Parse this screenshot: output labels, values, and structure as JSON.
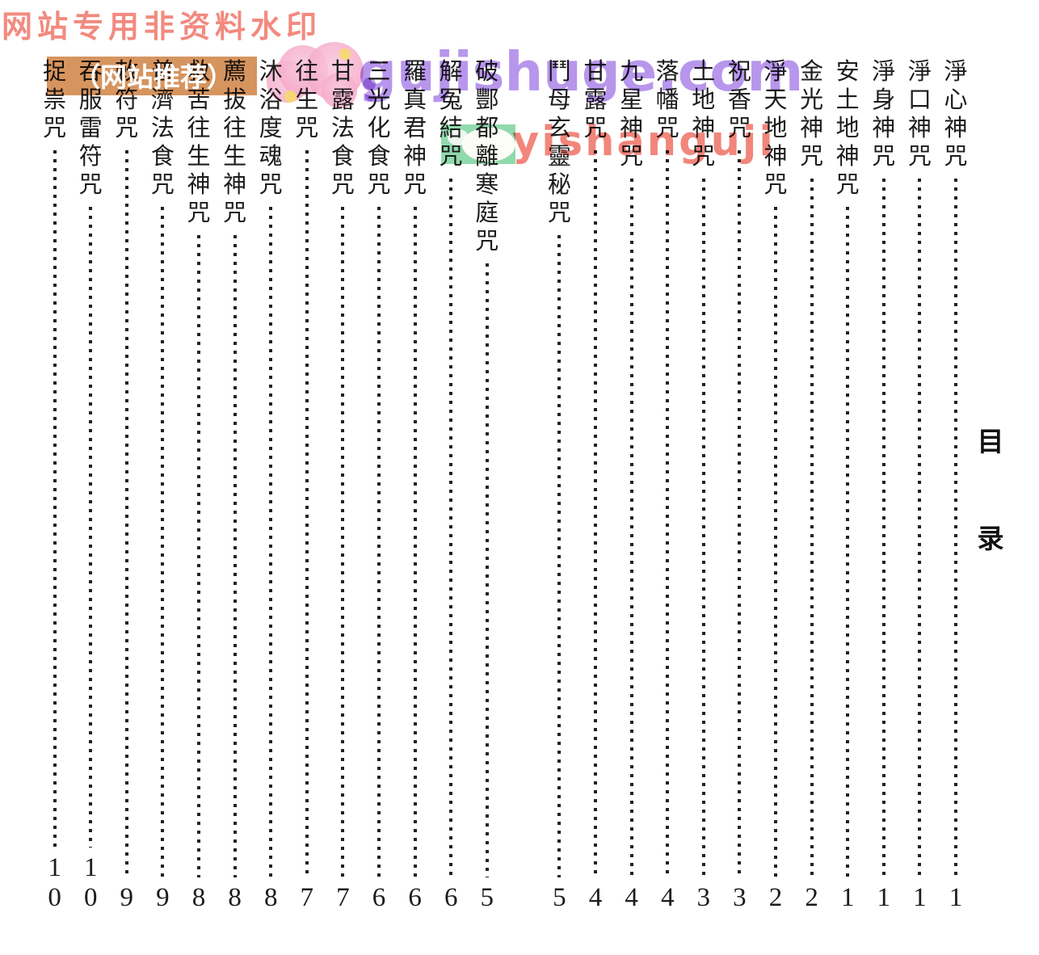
{
  "page_header": {
    "chars": [
      "目",
      "录"
    ]
  },
  "watermarks": {
    "banner_text": "网站专用非资料水印",
    "badge_text": "（网站推荐）",
    "purple_url": "gujishuge.com",
    "red_url": "yishanguji",
    "colors": {
      "banner_pink": "#f28a7f",
      "badge_bg": "#d6945f",
      "badge_text": "#ffffff",
      "purple_url": "#8a55e0",
      "red_url": "#ec5d4e",
      "stamp_green": "#86d7a5",
      "blob_pink": "#f5a8c8"
    }
  },
  "toc": {
    "reading_order": "right-to-left",
    "entries": [
      {
        "title": "淨心神咒",
        "page": "1"
      },
      {
        "title": "淨口神咒",
        "page": "1"
      },
      {
        "title": "淨身神咒",
        "page": "1"
      },
      {
        "title": "安土地神咒",
        "page": "1"
      },
      {
        "title": "金光神咒",
        "page": "2"
      },
      {
        "title": "淨天地神咒",
        "page": "2"
      },
      {
        "title": "祝香咒",
        "page": "3"
      },
      {
        "title": "土地神咒",
        "page": "3"
      },
      {
        "title": "落幡咒",
        "page": "4"
      },
      {
        "title": "九星神咒",
        "page": "4"
      },
      {
        "title": "甘露咒",
        "page": "4"
      },
      {
        "title": "鬥母玄靈秘咒",
        "page": "5"
      },
      {
        "title": "破酆都離寒庭咒",
        "page": "5"
      },
      {
        "title": "解冤結咒",
        "page": "6"
      },
      {
        "title": "羅真君神咒",
        "page": "6"
      },
      {
        "title": "三光化食咒",
        "page": "6"
      },
      {
        "title": "甘露法食咒",
        "page": "7"
      },
      {
        "title": "往生咒",
        "page": "7"
      },
      {
        "title": "沐浴度魂咒",
        "page": "8"
      },
      {
        "title": "薦拔往生神咒",
        "page": "8"
      },
      {
        "title": "救苦往生神咒",
        "page": "8"
      },
      {
        "title": "普濟法食咒",
        "page": "9"
      },
      {
        "title": "敕符咒",
        "page": "9"
      },
      {
        "title": "吞服雷符咒",
        "page": "10"
      },
      {
        "title": "捉祟咒",
        "page": "10"
      }
    ]
  }
}
